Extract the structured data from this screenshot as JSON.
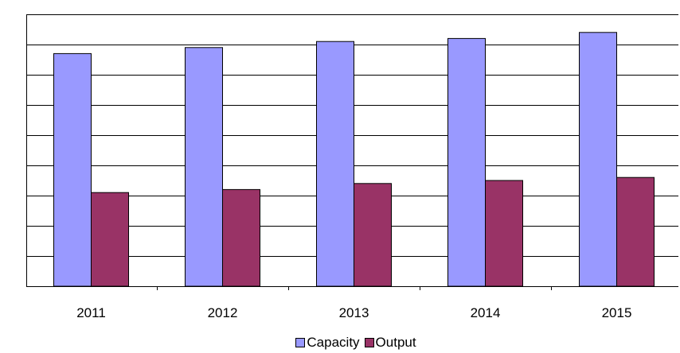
{
  "chart_data": {
    "type": "bar",
    "title": "",
    "xlabel": "",
    "ylabel": "",
    "categories": [
      "2011",
      "2012",
      "2013",
      "2014",
      "2015"
    ],
    "series": [
      {
        "name": "Capacity",
        "values": [
          7.7,
          7.9,
          8.1,
          8.2,
          8.4
        ],
        "color": "#9999FF"
      },
      {
        "name": "Output",
        "values": [
          3.1,
          3.2,
          3.4,
          3.5,
          3.6
        ],
        "color": "#993366"
      }
    ],
    "ylim": [
      0,
      9
    ],
    "grid": true,
    "legend": "bottom"
  }
}
